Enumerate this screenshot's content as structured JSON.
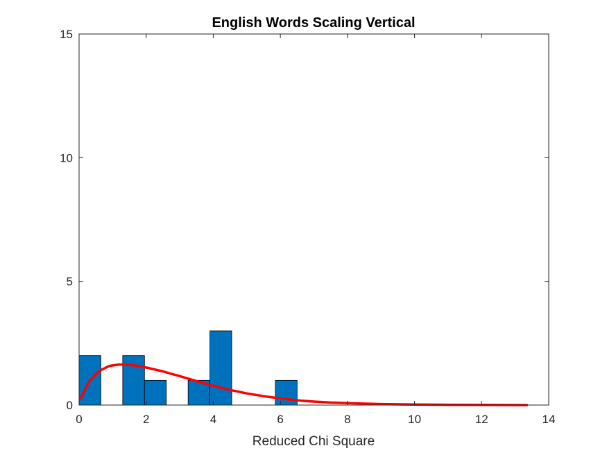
{
  "chart_data": {
    "type": "bar",
    "title": "English Words Scaling Vertical",
    "xlabel": "Reduced Chi Square",
    "ylabel": "",
    "xlim": [
      0,
      14
    ],
    "ylim": [
      0,
      15
    ],
    "xticks": [
      0,
      2,
      4,
      6,
      8,
      10,
      12,
      14
    ],
    "yticks": [
      0,
      5,
      10,
      15
    ],
    "xtick_labels": [
      "0",
      "2",
      "4",
      "6",
      "8",
      "10",
      "12",
      "14"
    ],
    "ytick_labels": [
      "0",
      "5",
      "10",
      "15"
    ],
    "grid": false,
    "histogram": {
      "bin_edges": [
        0,
        0.65,
        1.3,
        1.95,
        2.6,
        3.25,
        3.9,
        4.55,
        5.2,
        5.85,
        6.5
      ],
      "counts": [
        2,
        0,
        2,
        1,
        0,
        1,
        3,
        0,
        0,
        1
      ],
      "color": "#0072BD",
      "edge_color": "#000000"
    },
    "fit_curve": {
      "type": "line",
      "name": "fit",
      "color": "#FF0000",
      "x": [
        0.05,
        0.3,
        0.6,
        0.9,
        1.2,
        1.5,
        1.8,
        2.1,
        2.5,
        3.0,
        3.5,
        4.0,
        4.5,
        5.0,
        5.5,
        6.0,
        6.5,
        7.0,
        7.5,
        8.0,
        9.0,
        10.0,
        11.0,
        12.0,
        13.35
      ],
      "y": [
        0.28,
        0.95,
        1.38,
        1.58,
        1.64,
        1.63,
        1.57,
        1.49,
        1.36,
        1.17,
        0.97,
        0.78,
        0.61,
        0.47,
        0.36,
        0.27,
        0.19,
        0.14,
        0.1,
        0.08,
        0.04,
        0.02,
        0.01,
        0.005,
        0.0
      ]
    }
  }
}
